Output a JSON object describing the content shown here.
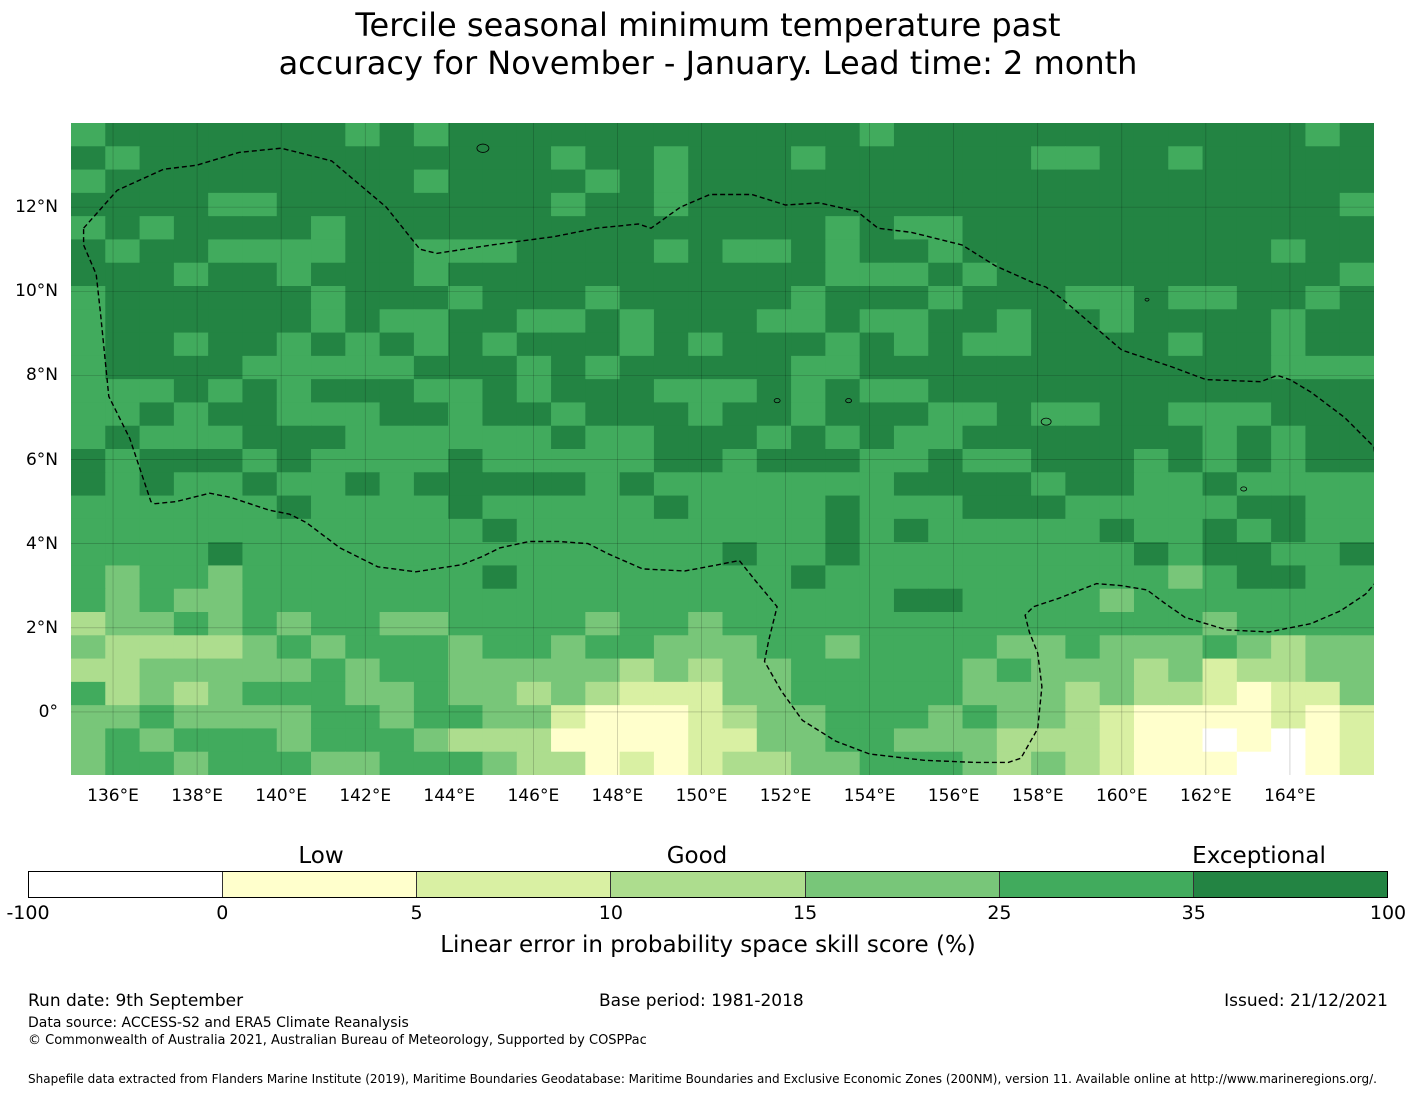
{
  "title_line1": "Tercile seasonal minimum temperature past",
  "title_line2": "accuracy for November - January. Lead time: 2 month",
  "map": {
    "lon_range": [
      135,
      166
    ],
    "lat_range": [
      -1.5,
      14
    ],
    "lon_ticks": [
      "136°E",
      "138°E",
      "140°E",
      "142°E",
      "144°E",
      "146°E",
      "148°E",
      "150°E",
      "152°E",
      "154°E",
      "156°E",
      "158°E",
      "160°E",
      "162°E",
      "164°E"
    ],
    "lat_ticks": [
      "12°N",
      "10°N",
      "8°N",
      "6°N",
      "4°N",
      "2°N",
      "0°"
    ],
    "gridlines": true,
    "boundary_style": "dashed",
    "boundary": [
      [
        135.3,
        11.5
      ],
      [
        136.1,
        12.4
      ],
      [
        137.2,
        12.9
      ],
      [
        138,
        13
      ],
      [
        139,
        13.3
      ],
      [
        140,
        13.4
      ],
      [
        141.2,
        13.1
      ],
      [
        142.5,
        12
      ],
      [
        143.3,
        11
      ],
      [
        143.7,
        10.9
      ],
      [
        145,
        11.1
      ],
      [
        146.5,
        11.3
      ],
      [
        147.5,
        11.5
      ],
      [
        148.5,
        11.6
      ],
      [
        148.8,
        11.5
      ],
      [
        149.5,
        12
      ],
      [
        150.2,
        12.3
      ],
      [
        151.2,
        12.3
      ],
      [
        152,
        12.05
      ],
      [
        152.8,
        12.1
      ],
      [
        153.7,
        11.9
      ],
      [
        154.2,
        11.5
      ],
      [
        155,
        11.4
      ],
      [
        156.2,
        11.1
      ],
      [
        157,
        10.6
      ],
      [
        157.9,
        10.2
      ],
      [
        158.2,
        10.1
      ],
      [
        158.6,
        9.8
      ],
      [
        159.3,
        9.2
      ],
      [
        160,
        8.6
      ],
      [
        161.2,
        8.2
      ],
      [
        162,
        7.9
      ],
      [
        163.3,
        7.85
      ],
      [
        163.7,
        8
      ],
      [
        164,
        7.9
      ],
      [
        164.5,
        7.6
      ],
      [
        165.3,
        7
      ],
      [
        166,
        6.3
      ],
      [
        166.1,
        5.3
      ],
      [
        166.15,
        4.2
      ],
      [
        166.15,
        3.2
      ],
      [
        165.8,
        2.8
      ],
      [
        165.2,
        2.4
      ],
      [
        164.5,
        2.1
      ],
      [
        163.5,
        1.9
      ],
      [
        162.5,
        1.95
      ],
      [
        161.5,
        2.25
      ],
      [
        161,
        2.6
      ],
      [
        160.6,
        2.9
      ],
      [
        160,
        3
      ],
      [
        159.4,
        3.05
      ],
      [
        158.5,
        2.7
      ],
      [
        157.9,
        2.5
      ],
      [
        157.7,
        2.3
      ],
      [
        157.8,
        1.9
      ],
      [
        158,
        1.4
      ],
      [
        158.1,
        0.6
      ],
      [
        158,
        -0.4
      ],
      [
        157.6,
        -1.1
      ],
      [
        157.3,
        -1.2
      ],
      [
        156.5,
        -1.2
      ],
      [
        155.3,
        -1.15
      ],
      [
        154,
        -1
      ],
      [
        153.2,
        -0.7
      ],
      [
        152.4,
        -0.2
      ],
      [
        151.9,
        0.5
      ],
      [
        151.5,
        1.2
      ],
      [
        151.6,
        1.7
      ],
      [
        151.8,
        2.5
      ],
      [
        151.3,
        3.1
      ],
      [
        150.9,
        3.6
      ],
      [
        150.4,
        3.5
      ],
      [
        149.6,
        3.35
      ],
      [
        148.6,
        3.4
      ],
      [
        147.8,
        3.75
      ],
      [
        147.3,
        4
      ],
      [
        146.6,
        4.05
      ],
      [
        145.9,
        4.05
      ],
      [
        145.2,
        3.9
      ],
      [
        144.8,
        3.7
      ],
      [
        144.3,
        3.5
      ],
      [
        143.2,
        3.33
      ],
      [
        142.3,
        3.45
      ],
      [
        141.4,
        3.9
      ],
      [
        140.6,
        4.5
      ],
      [
        140.2,
        4.7
      ],
      [
        139.7,
        4.8
      ],
      [
        138.8,
        5.1
      ],
      [
        138.3,
        5.2
      ],
      [
        137.5,
        5
      ],
      [
        137,
        4.95
      ],
      [
        136.9,
        5
      ],
      [
        136.4,
        6.5
      ],
      [
        135.9,
        7.5
      ],
      [
        135.8,
        8.5
      ],
      [
        135.7,
        9.5
      ],
      [
        135.6,
        10.4
      ],
      [
        135.3,
        11.1
      ],
      [
        135.3,
        11.5
      ]
    ]
  },
  "legend": {
    "category_labels": [
      "Low",
      "Good",
      "Exceptional"
    ],
    "tick_labels": [
      "-100",
      "0",
      "5",
      "10",
      "15",
      "25",
      "35",
      "100"
    ],
    "colors": [
      "#ffffff",
      "#ffffcc",
      "#d9f0a3",
      "#addd8e",
      "#78c679",
      "#41ab5d",
      "#238443"
    ],
    "title": "Linear error in probability space skill score (%)"
  },
  "footer": {
    "run_date": "Run date: 9th September",
    "base_period": "Base period: 1981-2018",
    "issued": "Issued: 21/12/2021",
    "data_source": "Data source: ACCESS-S2 and ERA5 Climate Reanalysis",
    "copyright": "© Commonwealth of Australia 2021, Australian Bureau of Meteorology, Supported by COSPPac",
    "shapefile": "Shapefile data extracted from Flanders Marine Institute (2019), Maritime Boundaries Geodatabase: Maritime Boundaries and Exclusive Economic Zones (200NM), version 11. Available online at http://www.marineregions.org/."
  }
}
